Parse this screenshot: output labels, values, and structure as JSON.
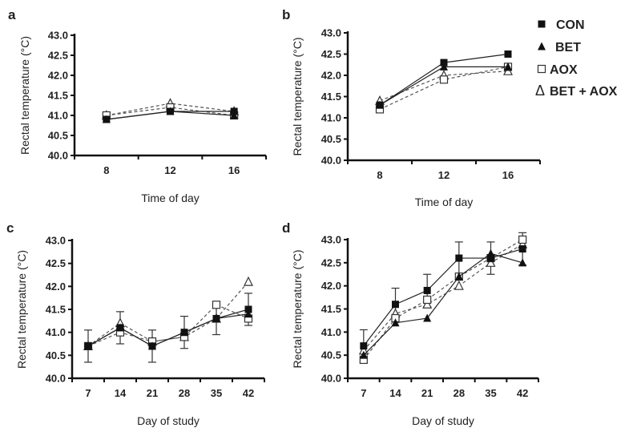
{
  "legend": [
    {
      "name": "CON",
      "marker": "filled-square",
      "line": "solid"
    },
    {
      "name": "BET",
      "marker": "filled-triangle",
      "line": "solid"
    },
    {
      "name": "AOX",
      "marker": "open-square",
      "line": "dashed"
    },
    {
      "name": "BET + AOX",
      "marker": "open-triangle",
      "line": "dashed"
    }
  ],
  "chart_data": [
    {
      "panel": "a",
      "type": "line",
      "xlabel": "Time of day",
      "ylabel": "Rectal temperature (°C)",
      "ylim": [
        40.0,
        43.0
      ],
      "yticks": [
        "40.0",
        "40.5",
        "41.0",
        "41.5",
        "42.0",
        "42.5",
        "43.0"
      ],
      "categories": [
        "8",
        "12",
        "16"
      ],
      "series": [
        {
          "name": "CON",
          "values": [
            40.9,
            41.1,
            41.1
          ]
        },
        {
          "name": "BET",
          "values": [
            40.9,
            41.1,
            41.0
          ]
        },
        {
          "name": "AOX",
          "values": [
            41.0,
            41.2,
            41.0
          ]
        },
        {
          "name": "BET + AOX",
          "values": [
            41.0,
            41.3,
            41.1
          ]
        }
      ],
      "error": null
    },
    {
      "panel": "b",
      "type": "line",
      "xlabel": "Time of day",
      "ylabel": "Rectal temperature (°C)",
      "ylim": [
        40.0,
        43.0
      ],
      "yticks": [
        "40.0",
        "40.5",
        "41.0",
        "41.5",
        "42.0",
        "42.5",
        "43.0"
      ],
      "categories": [
        "8",
        "12",
        "16"
      ],
      "series": [
        {
          "name": "CON",
          "values": [
            41.3,
            42.3,
            42.5
          ]
        },
        {
          "name": "BET",
          "values": [
            41.3,
            42.2,
            42.2
          ]
        },
        {
          "name": "AOX",
          "values": [
            41.2,
            41.9,
            42.2
          ]
        },
        {
          "name": "BET + AOX",
          "values": [
            41.4,
            42.0,
            42.1
          ]
        }
      ],
      "error": null
    },
    {
      "panel": "c",
      "type": "line",
      "xlabel": "Day of study",
      "ylabel": "Rectal temperature (°C)",
      "ylim": [
        40.0,
        43.0
      ],
      "yticks": [
        "40.0",
        "40.5",
        "41.0",
        "41.5",
        "42.0",
        "42.5",
        "43.0"
      ],
      "categories": [
        "7",
        "14",
        "21",
        "28",
        "35",
        "42"
      ],
      "series": [
        {
          "name": "CON",
          "values": [
            40.7,
            41.1,
            40.7,
            41.0,
            41.3,
            41.5
          ]
        },
        {
          "name": "BET",
          "values": [
            40.7,
            41.1,
            40.7,
            41.0,
            41.3,
            41.4
          ]
        },
        {
          "name": "AOX",
          "values": [
            40.7,
            41.0,
            40.8,
            40.9,
            41.6,
            41.3
          ]
        },
        {
          "name": "BET + AOX",
          "values": [
            40.7,
            41.2,
            40.8,
            40.9,
            41.3,
            42.1
          ]
        }
      ],
      "error": {
        "series": "CON",
        "values": [
          0.35,
          0.35,
          0.35,
          0.35,
          0.35,
          0.35
        ]
      }
    },
    {
      "panel": "d",
      "type": "line",
      "xlabel": "Day of study",
      "ylabel": "Rectal temperature (°C)",
      "ylim": [
        40.0,
        43.0
      ],
      "yticks": [
        "40.0",
        "40.5",
        "41.0",
        "41.5",
        "42.0",
        "42.5",
        "43.0"
      ],
      "categories": [
        "7",
        "14",
        "21",
        "28",
        "35",
        "42"
      ],
      "series": [
        {
          "name": "CON",
          "values": [
            40.7,
            41.6,
            41.9,
            42.6,
            42.6,
            42.8
          ]
        },
        {
          "name": "BET",
          "values": [
            40.5,
            41.2,
            41.3,
            42.2,
            42.7,
            42.5
          ]
        },
        {
          "name": "AOX",
          "values": [
            40.4,
            41.3,
            41.7,
            42.2,
            42.6,
            43.0
          ]
        },
        {
          "name": "BET + AOX",
          "values": [
            40.6,
            41.4,
            41.6,
            42.0,
            42.5,
            42.9
          ]
        }
      ],
      "error": {
        "series": "CON",
        "values": [
          0.35,
          0.35,
          0.35,
          0.35,
          0.35,
          0.35
        ]
      }
    }
  ]
}
